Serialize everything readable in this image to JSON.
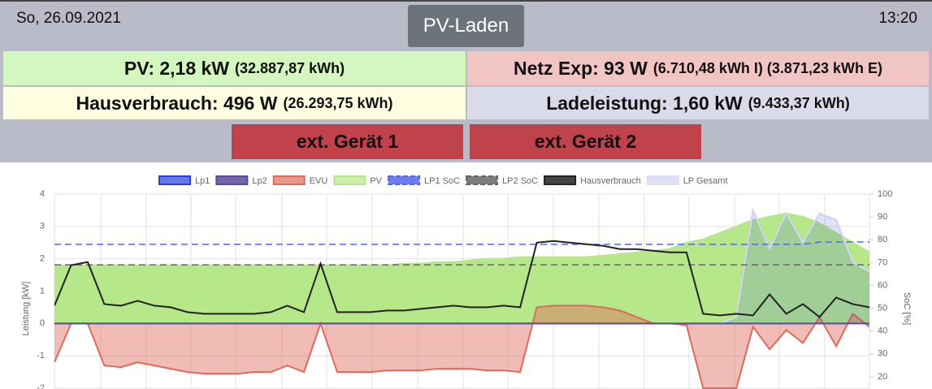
{
  "header": {
    "date": "So, 26.09.2021",
    "button": "PV-Laden",
    "time": "13:20"
  },
  "info": {
    "pv": {
      "label": "PV: 2,18 kW",
      "detail": "(32.887,87 kWh)"
    },
    "grid": {
      "label": "Netz Exp: 93 W",
      "detail": "(6.710,48 kWh I) (3.871,23 kWh E)"
    },
    "house": {
      "label": "Hausverbrauch: 496 W",
      "detail": "(26.293,75 kWh)"
    },
    "charge": {
      "label": "Ladeleistung: 1,60 kW",
      "detail": "(9.433,37 kWh)"
    }
  },
  "devices": [
    "ext. Gerät 1",
    "ext. Gerät 2"
  ],
  "chart_data": {
    "type": "line",
    "ylabel": "Leistung [kW]",
    "y2label": "SoC [%]",
    "categories": [
      null,
      null,
      null,
      null,
      null,
      null,
      null,
      null,
      null,
      null,
      null,
      null,
      null,
      null,
      null,
      null,
      null,
      null,
      null,
      null,
      null,
      null,
      null,
      null,
      null,
      null,
      null,
      null,
      null,
      null,
      null,
      null,
      null,
      null,
      null,
      null,
      null,
      null,
      null,
      null,
      null,
      null,
      null,
      null,
      null,
      null,
      null,
      null,
      null,
      null
    ],
    "ylim": [
      -2,
      4
    ],
    "yticks": [
      -2,
      -1,
      0,
      1,
      2,
      3,
      4
    ],
    "y2lim": [
      15,
      100
    ],
    "y2ticks": [
      20,
      30,
      40,
      50,
      60,
      70,
      80,
      90,
      100
    ],
    "grid": true,
    "series": [
      {
        "name": "Lp1",
        "color": "#2a3ee0",
        "fill": true,
        "values": [
          0,
          0,
          0,
          0,
          0,
          0,
          0,
          0,
          0,
          0,
          0,
          0,
          0,
          0,
          0,
          0,
          0,
          0,
          0,
          0,
          0,
          0,
          0,
          0,
          0,
          0,
          0,
          0,
          0,
          0,
          0,
          0,
          0,
          0,
          0,
          0,
          0,
          0,
          0,
          0,
          0,
          0.2,
          3.5,
          2.3,
          3.4,
          2.5,
          3.4,
          3.2,
          1.9,
          1.6
        ]
      },
      {
        "name": "Lp2",
        "color": "#5b4a96",
        "values": [
          0,
          0,
          0,
          0,
          0,
          0,
          0,
          0,
          0,
          0,
          0,
          0,
          0,
          0,
          0,
          0,
          0,
          0,
          0,
          0,
          0,
          0,
          0,
          0,
          0,
          0,
          0,
          0,
          0,
          0,
          0,
          0,
          0,
          0,
          0,
          0,
          0,
          0,
          0,
          0,
          0,
          0,
          0,
          0,
          0,
          0,
          0,
          0,
          0,
          0
        ]
      },
      {
        "name": "EVU",
        "color": "#e06a5c",
        "fill": true,
        "values": [
          -1.2,
          0,
          0,
          -1.3,
          -1.35,
          -1.2,
          -1.3,
          -1.4,
          -1.5,
          -1.55,
          -1.55,
          -1.55,
          -1.5,
          -1.5,
          -1.3,
          -1.5,
          0,
          -1.5,
          -1.5,
          -1.5,
          -1.45,
          -1.45,
          -1.45,
          -1.4,
          -1.4,
          -1.4,
          -1.45,
          -1.45,
          -1.5,
          0.5,
          0.55,
          0.55,
          0.55,
          0.5,
          0.4,
          0.2,
          0,
          0,
          -0.05,
          -2,
          -2,
          -2,
          -0.1,
          -0.8,
          -0.2,
          -0.6,
          0.2,
          -0.7,
          0.3,
          -0.1
        ]
      },
      {
        "name": "PV",
        "color": "#b6e88a",
        "fill": true,
        "values": [
          1.8,
          1.8,
          1.8,
          1.8,
          1.8,
          1.8,
          1.8,
          1.8,
          1.8,
          1.8,
          1.8,
          1.8,
          1.8,
          1.8,
          1.8,
          1.8,
          1.8,
          1.8,
          1.8,
          1.8,
          1.8,
          1.85,
          1.85,
          1.9,
          1.9,
          1.95,
          2.0,
          2.0,
          2.05,
          2.05,
          2.05,
          2.05,
          2.05,
          2.1,
          2.15,
          2.2,
          2.25,
          2.3,
          2.5,
          2.6,
          2.8,
          3.0,
          3.2,
          3.3,
          3.4,
          3.3,
          3.1,
          2.8,
          2.5,
          2.2
        ]
      },
      {
        "name": "LP1 SoC",
        "color": "#5566ee",
        "dash": true,
        "axis": "y2",
        "values": [
          78,
          78,
          78,
          78,
          78,
          78,
          78,
          78,
          78,
          78,
          78,
          78,
          78,
          78,
          78,
          78,
          78,
          78,
          78,
          78,
          78,
          78,
          78,
          78,
          78,
          78,
          78,
          78,
          78,
          78,
          78,
          78,
          78,
          78,
          78,
          78,
          78,
          78,
          78,
          78,
          78,
          78,
          78,
          78,
          78,
          78,
          79,
          79,
          79,
          79
        ]
      },
      {
        "name": "LP2 SoC",
        "color": "#666666",
        "dash": true,
        "axis": "y2",
        "values": [
          69,
          69,
          69,
          69,
          69,
          69,
          69,
          69,
          69,
          69,
          69,
          69,
          69,
          69,
          69,
          69,
          69,
          69,
          69,
          69,
          69,
          69,
          69,
          69,
          69,
          69,
          69,
          69,
          69,
          69,
          69,
          69,
          69,
          69,
          69,
          69,
          69,
          69,
          69,
          69,
          69,
          69,
          69,
          69,
          69,
          69,
          69,
          69,
          69,
          69
        ]
      },
      {
        "name": "Hausverbrauch",
        "color": "#222222",
        "values": [
          0.55,
          1.8,
          1.9,
          0.6,
          0.55,
          0.7,
          0.55,
          0.5,
          0.35,
          0.3,
          0.3,
          0.3,
          0.3,
          0.35,
          0.55,
          0.35,
          1.85,
          0.35,
          0.35,
          0.35,
          0.4,
          0.4,
          0.45,
          0.5,
          0.55,
          0.5,
          0.5,
          0.55,
          0.5,
          2.5,
          2.55,
          2.5,
          2.45,
          2.4,
          2.3,
          2.3,
          2.25,
          2.2,
          2.2,
          0.3,
          0.25,
          0.3,
          0.25,
          0.9,
          0.3,
          0.6,
          0.2,
          0.8,
          0.6,
          0.5
        ]
      },
      {
        "name": "LP Gesamt",
        "color": "#dcdcf4",
        "values": [
          0,
          0,
          0,
          0,
          0,
          0,
          0,
          0,
          0,
          0,
          0,
          0,
          0,
          0,
          0,
          0,
          0,
          0,
          0,
          0,
          0,
          0,
          0,
          0,
          0,
          0,
          0,
          0,
          0,
          0,
          0,
          0,
          0,
          0,
          0,
          0,
          0,
          0,
          0,
          0,
          0,
          0.2,
          3.5,
          2.3,
          3.4,
          2.5,
          3.4,
          3.2,
          1.9,
          1.6
        ]
      }
    ]
  }
}
